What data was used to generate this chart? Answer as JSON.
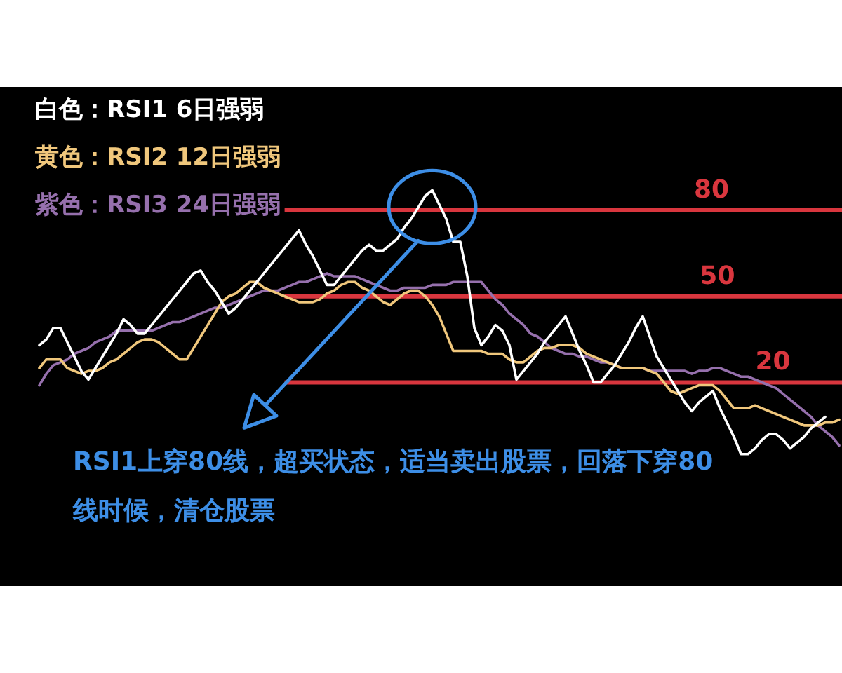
{
  "chart_data": {
    "type": "line",
    "categories": [
      null,
      null,
      null,
      null,
      null,
      null,
      null,
      null,
      null,
      null,
      null,
      null,
      null,
      null,
      null,
      null,
      null,
      null,
      null,
      null,
      null,
      null,
      null,
      null,
      null,
      null,
      null,
      null,
      null,
      null,
      null,
      null,
      null,
      null,
      null,
      null,
      null,
      null,
      null,
      null,
      null,
      null,
      null,
      null,
      null,
      null,
      null,
      null,
      null,
      null,
      null,
      null,
      null,
      null,
      null,
      null,
      null,
      null,
      null,
      null,
      null,
      null,
      null,
      null,
      null,
      null,
      null,
      null,
      null,
      null,
      null,
      null,
      null,
      null,
      null,
      null,
      null,
      null,
      null,
      null,
      null,
      null,
      null,
      null,
      null,
      null,
      null,
      null,
      null,
      null,
      null,
      null,
      null,
      null,
      null,
      null,
      null,
      null,
      null,
      null,
      null,
      null,
      null,
      null,
      null,
      null,
      null,
      null,
      null,
      null,
      null,
      null,
      null,
      null,
      null
    ],
    "series": [
      {
        "name": "白色：RSI1 6日强弱",
        "color": "#ffffff",
        "values": [
          33,
          35,
          39,
          39,
          34,
          29,
          24,
          21,
          25,
          29,
          33,
          37,
          42,
          40,
          37,
          37,
          40,
          43,
          46,
          49,
          52,
          55,
          58,
          59,
          55,
          52,
          48,
          44,
          46,
          49,
          52,
          55,
          58,
          61,
          64,
          67,
          70,
          73,
          68,
          64,
          59,
          54,
          54,
          57,
          60,
          63,
          66,
          68,
          66,
          66,
          68,
          70,
          74,
          77,
          81,
          85,
          87,
          82,
          77,
          69,
          69,
          57,
          39,
          33,
          36,
          40,
          38,
          33,
          21,
          24,
          27,
          30,
          34,
          37,
          40,
          43,
          37,
          31,
          26,
          20,
          20,
          23,
          26,
          30,
          34,
          39,
          43,
          36,
          29,
          25,
          21,
          17,
          13,
          10,
          13,
          15,
          17,
          11,
          6,
          1,
          -5,
          -5,
          -3,
          0,
          2,
          2,
          0,
          -3,
          -1,
          1,
          4,
          6,
          8,
          null,
          null
        ]
      },
      {
        "name": "黄色：RSI2 12日强弱",
        "color": "#f0c77c",
        "values": [
          25,
          28,
          28,
          28,
          25,
          24,
          23,
          24,
          24,
          25,
          27,
          28,
          30,
          32,
          34,
          35,
          35,
          34,
          32,
          30,
          28,
          28,
          32,
          36,
          40,
          44,
          48,
          50,
          51,
          53,
          55,
          55,
          53,
          52,
          51,
          50,
          49,
          48,
          48,
          48,
          49,
          51,
          52,
          54,
          55,
          55,
          53,
          52,
          50,
          48,
          47,
          49,
          51,
          52,
          52,
          50,
          47,
          43,
          37,
          31,
          31,
          31,
          31,
          31,
          30,
          30,
          30,
          28,
          27,
          27,
          29,
          31,
          32,
          32,
          33,
          33,
          33,
          32,
          30,
          29,
          28,
          27,
          26,
          25,
          25,
          25,
          25,
          24,
          23,
          20,
          17,
          16,
          17,
          18,
          19,
          19,
          19,
          17,
          14,
          11,
          11,
          11,
          12,
          11,
          10,
          9,
          8,
          7,
          6,
          5,
          5,
          5,
          6,
          6,
          7
        ]
      },
      {
        "name": "紫色：RSI3 24日强弱",
        "color": "#9670ad",
        "values": [
          19,
          23,
          26,
          27,
          28,
          30,
          31,
          32,
          34,
          35,
          36,
          38,
          38,
          38,
          38,
          38,
          38,
          39,
          40,
          41,
          41,
          42,
          43,
          44,
          45,
          46,
          46,
          47,
          48,
          49,
          50,
          51,
          52,
          52,
          52,
          53,
          54,
          55,
          55,
          56,
          57,
          58,
          57,
          57,
          57,
          57,
          56,
          55,
          54,
          53,
          52,
          52,
          53,
          53,
          53,
          53,
          54,
          54,
          54,
          55,
          55,
          55,
          55,
          55,
          52,
          49,
          47,
          44,
          42,
          40,
          37,
          36,
          34,
          32,
          31,
          30,
          30,
          29,
          29,
          28,
          27,
          27,
          26,
          25,
          25,
          25,
          25,
          24,
          24,
          24,
          24,
          24,
          24,
          23,
          24,
          24,
          25,
          25,
          24,
          23,
          22,
          22,
          21,
          20,
          19,
          18,
          16,
          14,
          12,
          10,
          8,
          5,
          3,
          1,
          -2
        ]
      }
    ],
    "ylim": [
      -51,
      123
    ],
    "tick_labels": false,
    "grid": false,
    "legend": "top left",
    "marker": "none",
    "line_style": "solid",
    "ref_lines": [
      {
        "axis": "y",
        "value": 80,
        "label": "80",
        "color": "#d9363e"
      },
      {
        "axis": "y",
        "value": 50,
        "label": "50",
        "color": "#d9363e"
      },
      {
        "axis": "y",
        "value": 20,
        "label": "20",
        "color": "#d9363e"
      }
    ],
    "annotations": [
      "RSI1上穿80线，超买状态，适当卖出股票，回落下穿80线时候，清仓股票"
    ]
  }
}
